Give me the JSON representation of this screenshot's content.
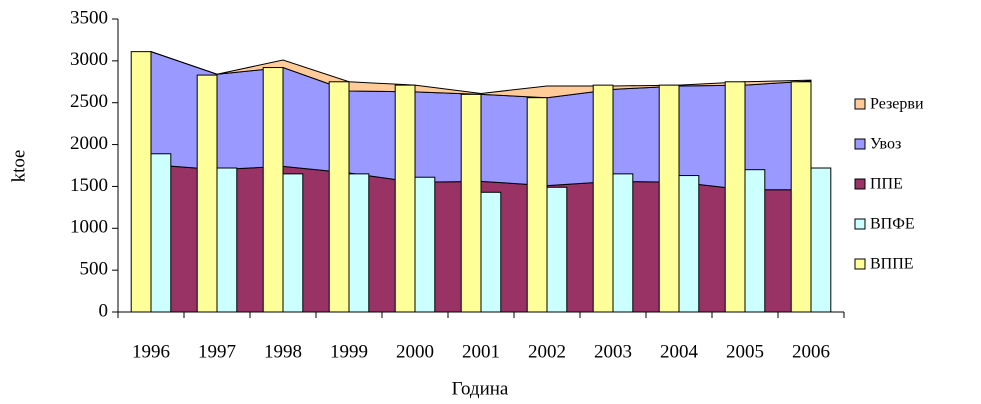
{
  "chart_data": {
    "type": "combo",
    "categories": [
      "1996",
      "1997",
      "1998",
      "1999",
      "2000",
      "2001",
      "2002",
      "2003",
      "2004",
      "2005",
      "2006"
    ],
    "series": [
      {
        "name": "ППЕ",
        "type": "area",
        "color": "#993366",
        "values": [
          1760,
          1700,
          1740,
          1660,
          1550,
          1560,
          1510,
          1560,
          1550,
          1460,
          1460
        ]
      },
      {
        "name": "Увоз",
        "type": "area",
        "color": "#9999FF",
        "values": [
          1350,
          1140,
          1180,
          980,
          1080,
          1040,
          1050,
          1100,
          1150,
          1250,
          1300
        ]
      },
      {
        "name": "Резерви",
        "type": "area",
        "color": "#FFCC99",
        "values": [
          0,
          0,
          90,
          110,
          80,
          10,
          140,
          40,
          10,
          40,
          10
        ]
      },
      {
        "name": "ВППЕ",
        "type": "bar",
        "color": "#FFFF99",
        "values": [
          3110,
          2830,
          2920,
          2750,
          2710,
          2600,
          2560,
          2710,
          2710,
          2750,
          2750
        ]
      },
      {
        "name": "ВПФЕ",
        "type": "bar",
        "color": "#CCFFFF",
        "values": [
          1890,
          1720,
          1650,
          1650,
          1610,
          1430,
          1490,
          1650,
          1630,
          1700,
          1720
        ]
      }
    ],
    "legend_order": [
      "Резерви",
      "Увоз",
      "ППЕ",
      "ВПФЕ",
      "ВППЕ"
    ],
    "legend": "right",
    "ylim": [
      0,
      3500
    ],
    "yticks": [
      0,
      500,
      1000,
      1500,
      2000,
      2500,
      3000,
      3500
    ],
    "ylabel": "ktoe",
    "xlabel": "Година"
  }
}
